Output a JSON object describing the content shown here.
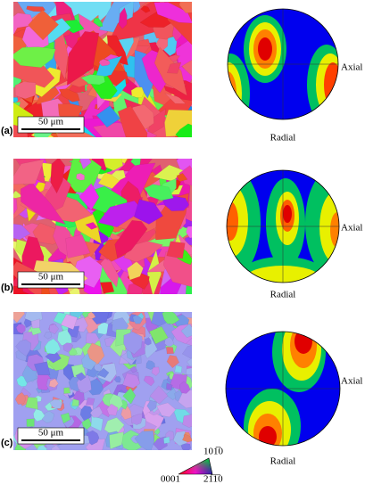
{
  "panels": [
    {
      "label": "(a)",
      "scale_bar": "50 μm",
      "pole_figure": {
        "right_label": "Axial",
        "bottom_label": "Radial"
      }
    },
    {
      "label": "(b)",
      "scale_bar": "50 μm",
      "pole_figure": {
        "right_label": "Axial",
        "bottom_label": "Radial"
      }
    },
    {
      "label": "(c)",
      "scale_bar": "50 μm",
      "pole_figure": {
        "right_label": "Axial",
        "bottom_label": "Radial"
      }
    }
  ],
  "legend": {
    "top": "101̅0",
    "bottom_left": "0001",
    "bottom_right": "21̅1̅0"
  }
}
